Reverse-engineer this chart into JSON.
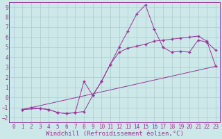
{
  "xlabel": "Windchill (Refroidissement éolien,°C)",
  "xlim": [
    -0.5,
    23.5
  ],
  "ylim": [
    -2.5,
    9.5
  ],
  "xticks": [
    0,
    1,
    2,
    3,
    4,
    5,
    6,
    7,
    8,
    9,
    10,
    11,
    12,
    13,
    14,
    15,
    16,
    17,
    18,
    19,
    20,
    21,
    22,
    23
  ],
  "yticks": [
    -2,
    -1,
    0,
    1,
    2,
    3,
    4,
    5,
    6,
    7,
    8,
    9
  ],
  "background_color": "#cce8e8",
  "grid_color": "#aacccc",
  "line_color": "#993399",
  "line1_x": [
    1,
    2,
    3,
    4,
    5,
    6,
    7,
    8,
    9,
    10,
    11,
    12,
    13,
    14,
    15,
    16,
    17,
    18,
    19,
    20,
    21,
    22,
    23
  ],
  "line1_y": [
    -1.2,
    -1.0,
    -1.1,
    -1.2,
    -1.5,
    -1.6,
    -1.5,
    -1.4,
    0.2,
    1.6,
    3.3,
    5.0,
    6.6,
    8.3,
    9.2,
    6.8,
    5.0,
    4.5,
    4.6,
    4.5,
    5.7,
    5.5,
    4.7
  ],
  "line2_x": [
    1,
    3,
    4,
    5,
    6,
    7,
    8,
    9,
    10,
    11,
    12,
    13,
    14,
    15,
    16,
    17,
    18,
    19,
    20,
    21,
    22,
    23
  ],
  "line2_y": [
    -1.2,
    -1.1,
    -1.2,
    -1.5,
    -1.6,
    -1.5,
    1.6,
    0.2,
    1.6,
    3.3,
    4.5,
    4.9,
    5.1,
    5.3,
    5.6,
    5.7,
    5.8,
    5.9,
    6.0,
    6.1,
    5.6,
    3.1
  ],
  "line3_x": [
    1,
    23
  ],
  "line3_y": [
    -1.2,
    3.1
  ],
  "tick_fontsize": 5.5,
  "xlabel_fontsize": 6.5,
  "marker": "+",
  "marker_size": 3.5,
  "line_width": 0.7
}
